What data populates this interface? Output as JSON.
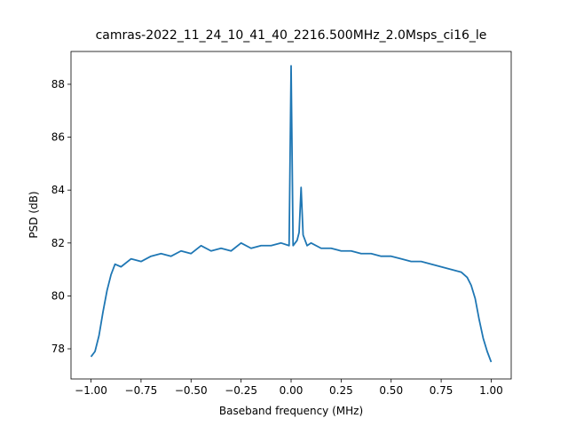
{
  "chart_data": {
    "type": "line",
    "title": "camras-2022_11_24_10_41_40_2216.500MHz_2.0Msps_ci16_le",
    "x_label": "Baseband frequency (MHz)",
    "y_label": "PSD (dB)",
    "xlim": [
      -1.1,
      1.1
    ],
    "ylim": [
      76.86,
      89.24
    ],
    "xticks": [
      {
        "value": -1,
        "label": "−1.00"
      },
      {
        "value": -0.75,
        "label": "−0.75"
      },
      {
        "value": -0.5,
        "label": "−0.50"
      },
      {
        "value": -0.25,
        "label": "−0.25"
      },
      {
        "value": 0,
        "label": "0.00"
      },
      {
        "value": 0.25,
        "label": "0.25"
      },
      {
        "value": 0.5,
        "label": "0.50"
      },
      {
        "value": 0.75,
        "label": "0.75"
      },
      {
        "value": 1,
        "label": "1.00"
      }
    ],
    "yticks": [
      78,
      80,
      82,
      84,
      86,
      88
    ],
    "color": "#1f77b4",
    "x": [
      -1.0,
      -0.98,
      -0.96,
      -0.94,
      -0.92,
      -0.9,
      -0.88,
      -0.85,
      -0.8,
      -0.75,
      -0.7,
      -0.65,
      -0.6,
      -0.55,
      -0.5,
      -0.45,
      -0.4,
      -0.35,
      -0.3,
      -0.25,
      -0.2,
      -0.15,
      -0.1,
      -0.05,
      -0.01,
      0.0,
      0.01,
      0.03,
      0.04,
      0.05,
      0.06,
      0.08,
      0.1,
      0.15,
      0.2,
      0.25,
      0.3,
      0.35,
      0.4,
      0.45,
      0.5,
      0.55,
      0.6,
      0.65,
      0.7,
      0.75,
      0.8,
      0.85,
      0.88,
      0.9,
      0.92,
      0.94,
      0.96,
      0.98,
      1.0
    ],
    "values": [
      77.7,
      77.9,
      78.5,
      79.4,
      80.2,
      80.8,
      81.2,
      81.1,
      81.4,
      81.3,
      81.5,
      81.6,
      81.5,
      81.7,
      81.6,
      81.9,
      81.7,
      81.8,
      81.7,
      82.0,
      81.8,
      81.9,
      81.9,
      82.0,
      81.9,
      88.7,
      81.9,
      82.1,
      82.4,
      84.1,
      82.3,
      81.9,
      82.0,
      81.8,
      81.8,
      81.7,
      81.7,
      81.6,
      81.6,
      81.5,
      81.5,
      81.4,
      81.3,
      81.3,
      81.2,
      81.1,
      81.0,
      80.9,
      80.7,
      80.4,
      79.9,
      79.1,
      78.4,
      77.9,
      77.5
    ]
  }
}
